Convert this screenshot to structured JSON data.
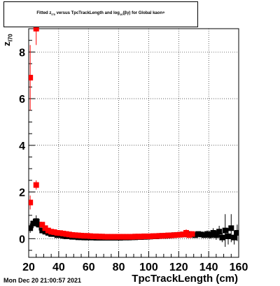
{
  "title": {
    "prefix": "Fitted  z",
    "sub1": "I70",
    "middle": "  versus TpcTrackLength and log",
    "sub2": "10",
    "suffix": "(βγ) for Global kaon+"
  },
  "footer_text": "Mon Dec 20 21:00:57 2021",
  "ylabel_text": "z",
  "ylabel_sub": "I70",
  "xlabel_text": "TpcTrackLength (cm)",
  "chart_data": {
    "type": "scatter",
    "xlim": [
      20,
      160
    ],
    "ylim": [
      -0.8,
      9.0
    ],
    "xticks": [
      20,
      40,
      60,
      80,
      100,
      120,
      140,
      160
    ],
    "yticks": [
      0,
      2,
      4,
      6,
      8
    ],
    "grid": true,
    "series": [
      {
        "color": "#000000",
        "marker": "square",
        "points": [
          [
            21,
            0.45,
            0.2
          ],
          [
            23,
            0.65,
            0.2
          ],
          [
            25,
            0.75,
            0.25
          ],
          [
            27,
            0.6,
            0.25
          ],
          [
            29,
            0.35,
            0.1
          ],
          [
            31,
            0.3,
            0.08
          ],
          [
            33,
            0.25,
            0.06
          ],
          [
            35,
            0.2,
            0.05
          ],
          [
            37,
            0.2,
            0.05
          ],
          [
            39,
            0.15,
            0.04
          ],
          [
            41,
            0.15,
            0.04
          ],
          [
            43,
            0.12,
            0.03
          ],
          [
            45,
            0.1,
            0.03
          ],
          [
            47,
            0.1,
            0.03
          ],
          [
            49,
            0.08,
            0.03
          ],
          [
            51,
            0.08,
            0.03
          ],
          [
            53,
            0.06,
            0.03
          ],
          [
            55,
            0.06,
            0.03
          ],
          [
            57,
            0.05,
            0.02
          ],
          [
            59,
            0.05,
            0.02
          ],
          [
            61,
            0.05,
            0.02
          ],
          [
            63,
            0.05,
            0.02
          ],
          [
            65,
            0.04,
            0.02
          ],
          [
            67,
            0.04,
            0.02
          ],
          [
            69,
            0.04,
            0.02
          ],
          [
            71,
            0.04,
            0.02
          ],
          [
            73,
            0.04,
            0.02
          ],
          [
            75,
            0.04,
            0.02
          ],
          [
            77,
            0.04,
            0.02
          ],
          [
            79,
            0.04,
            0.02
          ],
          [
            81,
            0.04,
            0.02
          ],
          [
            83,
            0.05,
            0.02
          ],
          [
            85,
            0.05,
            0.02
          ],
          [
            87,
            0.05,
            0.02
          ],
          [
            89,
            0.06,
            0.02
          ],
          [
            91,
            0.06,
            0.02
          ],
          [
            93,
            0.07,
            0.02
          ],
          [
            95,
            0.07,
            0.02
          ],
          [
            97,
            0.08,
            0.02
          ],
          [
            99,
            0.08,
            0.02
          ],
          [
            101,
            0.09,
            0.02
          ],
          [
            103,
            0.1,
            0.02
          ],
          [
            105,
            0.1,
            0.02
          ],
          [
            107,
            0.11,
            0.02
          ],
          [
            109,
            0.12,
            0.03
          ],
          [
            111,
            0.12,
            0.03
          ],
          [
            113,
            0.13,
            0.03
          ],
          [
            115,
            0.14,
            0.03
          ],
          [
            117,
            0.15,
            0.03
          ],
          [
            119,
            0.16,
            0.03
          ],
          [
            121,
            0.17,
            0.03
          ],
          [
            123,
            0.18,
            0.04
          ],
          [
            125,
            0.2,
            0.04
          ],
          [
            127,
            0.2,
            0.05
          ],
          [
            129,
            0.18,
            0.06
          ],
          [
            131,
            0.15,
            0.06
          ],
          [
            133,
            0.2,
            0.08
          ],
          [
            135,
            0.18,
            0.1
          ],
          [
            137,
            0.15,
            0.1
          ],
          [
            139,
            0.2,
            0.15
          ],
          [
            141,
            0.15,
            0.15
          ],
          [
            143,
            0.25,
            0.2
          ],
          [
            145,
            0.15,
            0.2
          ],
          [
            147,
            0.3,
            0.25
          ],
          [
            149,
            0.05,
            0.2
          ],
          [
            151,
            0.35,
            0.7
          ],
          [
            153,
            0.1,
            0.35
          ],
          [
            155,
            0.45,
            0.6
          ],
          [
            157,
            0.05,
            0.3
          ],
          [
            159,
            0.25,
            0.35
          ]
        ]
      },
      {
        "color": "#ff0000",
        "marker": "square",
        "points": [
          [
            21,
            1.55,
            0.3
          ],
          [
            21,
            6.9,
            1.4
          ],
          [
            25,
            9.0,
            0.7
          ],
          [
            25,
            2.3,
            0.2
          ],
          [
            29,
            0.6,
            0.1
          ],
          [
            31,
            0.45,
            0.08
          ],
          [
            33,
            0.35,
            0.06
          ],
          [
            35,
            0.3,
            0.05
          ],
          [
            37,
            0.28,
            0.04
          ],
          [
            39,
            0.25,
            0.04
          ],
          [
            41,
            0.24,
            0.04
          ],
          [
            43,
            0.22,
            0.03
          ],
          [
            45,
            0.2,
            0.03
          ],
          [
            47,
            0.18,
            0.03
          ],
          [
            49,
            0.16,
            0.03
          ],
          [
            51,
            0.15,
            0.03
          ],
          [
            53,
            0.14,
            0.02
          ],
          [
            55,
            0.13,
            0.02
          ],
          [
            57,
            0.12,
            0.02
          ],
          [
            59,
            0.12,
            0.02
          ],
          [
            61,
            0.11,
            0.02
          ],
          [
            63,
            0.1,
            0.02
          ],
          [
            65,
            0.1,
            0.02
          ],
          [
            67,
            0.09,
            0.02
          ],
          [
            69,
            0.09,
            0.02
          ],
          [
            71,
            0.08,
            0.02
          ],
          [
            73,
            0.08,
            0.02
          ],
          [
            75,
            0.08,
            0.02
          ],
          [
            77,
            0.08,
            0.02
          ],
          [
            79,
            0.08,
            0.02
          ],
          [
            81,
            0.08,
            0.02
          ],
          [
            83,
            0.08,
            0.02
          ],
          [
            85,
            0.08,
            0.02
          ],
          [
            87,
            0.08,
            0.02
          ],
          [
            89,
            0.08,
            0.02
          ],
          [
            91,
            0.09,
            0.02
          ],
          [
            93,
            0.09,
            0.02
          ],
          [
            95,
            0.09,
            0.02
          ],
          [
            97,
            0.1,
            0.02
          ],
          [
            99,
            0.1,
            0.02
          ],
          [
            101,
            0.1,
            0.02
          ],
          [
            103,
            0.11,
            0.02
          ],
          [
            105,
            0.11,
            0.02
          ],
          [
            107,
            0.12,
            0.02
          ],
          [
            109,
            0.12,
            0.02
          ],
          [
            111,
            0.13,
            0.02
          ],
          [
            113,
            0.14,
            0.03
          ],
          [
            115,
            0.14,
            0.03
          ],
          [
            117,
            0.15,
            0.03
          ],
          [
            119,
            0.16,
            0.03
          ],
          [
            121,
            0.17,
            0.04
          ],
          [
            123,
            0.18,
            0.05
          ],
          [
            125,
            0.25,
            0.15
          ],
          [
            127,
            0.15,
            0.06
          ],
          [
            129,
            0.2,
            0.07
          ]
        ]
      }
    ]
  }
}
